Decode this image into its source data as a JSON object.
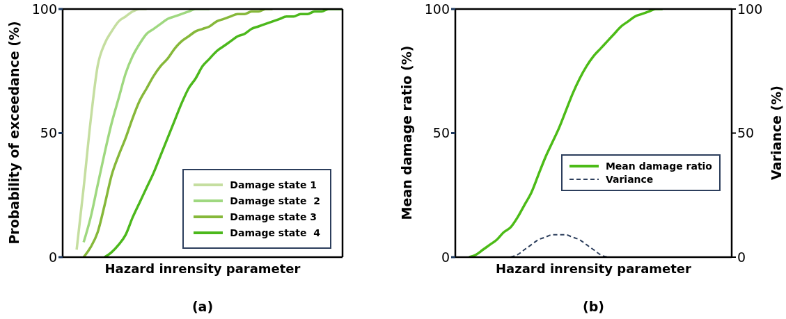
{
  "chart_data": [
    {
      "type": "line",
      "title": "(a)",
      "xlabel": "Hazard inrensity parameter",
      "ylabel": "Probability of exceedance (%)",
      "categories": [
        null,
        null,
        null,
        null,
        null,
        null,
        null,
        null,
        null,
        null,
        null,
        null,
        null,
        null,
        null,
        null,
        null,
        null,
        null,
        null,
        null,
        null,
        null,
        null,
        null,
        null,
        null,
        null,
        null,
        null,
        null,
        null,
        null,
        null,
        null,
        null,
        null,
        null,
        null,
        null,
        null
      ],
      "ylim": [
        0,
        100
      ],
      "yticks": [
        0,
        50,
        100
      ],
      "legend": "bottom right",
      "marker": "none",
      "line_style": "solid",
      "series": [
        {
          "name": "Damage state 1",
          "color": "#c5dea0",
          "values": [
            null,
            null,
            3,
            28,
            55,
            77,
            86,
            91,
            95,
            97,
            99,
            100,
            100,
            null,
            null,
            null,
            null,
            null,
            null,
            null,
            null,
            null,
            null,
            null,
            null,
            null,
            null,
            null,
            null,
            null,
            null,
            null,
            null,
            null,
            null,
            null,
            null,
            null,
            null,
            null,
            null
          ]
        },
        {
          "name": "Damage state  2",
          "color": "#9fd880",
          "values": [
            null,
            null,
            null,
            6,
            16,
            29,
            42,
            54,
            64,
            74,
            81,
            86,
            90,
            92,
            94,
            96,
            97,
            98,
            99,
            100,
            100,
            100,
            null,
            null,
            null,
            null,
            null,
            null,
            null,
            null,
            null,
            null,
            null,
            null,
            null,
            null,
            null,
            null,
            null,
            null,
            null
          ]
        },
        {
          "name": "Damage state 3",
          "color": "#86b83a",
          "values": [
            null,
            null,
            null,
            0,
            4,
            10,
            21,
            33,
            41,
            48,
            56,
            63,
            68,
            73,
            77,
            80,
            84,
            87,
            89,
            91,
            92,
            93,
            95,
            96,
            97,
            98,
            98,
            99,
            99,
            100,
            100,
            null,
            null,
            null,
            null,
            null,
            null,
            null,
            null,
            null,
            null
          ]
        },
        {
          "name": "Damage state  4",
          "color": "#4cb81c",
          "values": [
            null,
            null,
            null,
            null,
            null,
            null,
            0,
            2,
            5,
            9,
            16,
            22,
            28,
            34,
            41,
            48,
            55,
            62,
            68,
            72,
            77,
            80,
            83,
            85,
            87,
            89,
            90,
            92,
            93,
            94,
            95,
            96,
            97,
            97,
            98,
            98,
            99,
            99,
            100,
            100,
            100
          ]
        }
      ]
    },
    {
      "type": "line",
      "title": "(b)",
      "xlabel": "Hazard inrensity parameter",
      "ylabel": "Mean damage ratio (%)",
      "y2label": "Variance (%)",
      "categories": [
        null,
        null,
        null,
        null,
        null,
        null,
        null,
        null,
        null,
        null,
        null,
        null,
        null,
        null,
        null,
        null,
        null,
        null,
        null,
        null,
        null,
        null,
        null,
        null,
        null,
        null,
        null,
        null,
        null,
        null,
        null,
        null,
        null,
        null,
        null,
        null,
        null,
        null,
        null,
        null,
        null
      ],
      "ylim": [
        0,
        100
      ],
      "yticks": [
        0,
        50,
        100
      ],
      "y2lim": [
        0,
        100
      ],
      "y2ticks": [
        0,
        50,
        100
      ],
      "legend": "right",
      "marker": "none",
      "series": [
        {
          "name": "Mean damage ratio",
          "color": "#4cbb17",
          "line_style": "solid",
          "values": [
            null,
            null,
            0,
            1,
            3,
            5,
            7,
            10,
            12,
            16,
            21,
            26,
            33,
            40,
            46,
            52,
            59,
            66,
            72,
            77,
            81,
            84,
            87,
            90,
            93,
            95,
            97,
            98,
            99,
            100,
            100,
            null,
            null,
            null,
            null,
            null,
            null,
            null,
            null,
            null,
            null
          ]
        },
        {
          "name": "Variance",
          "color": "#2c3e5c",
          "line_style": "dashed",
          "axis": "y2",
          "values": [
            null,
            null,
            null,
            null,
            null,
            null,
            null,
            null,
            0,
            1,
            3,
            5,
            7,
            8,
            9,
            9,
            9,
            8,
            7,
            5,
            3,
            1,
            0,
            null,
            null,
            null,
            null,
            null,
            null,
            null,
            null,
            null,
            null,
            null,
            null,
            null,
            null,
            null,
            null,
            null,
            null
          ]
        }
      ]
    }
  ]
}
